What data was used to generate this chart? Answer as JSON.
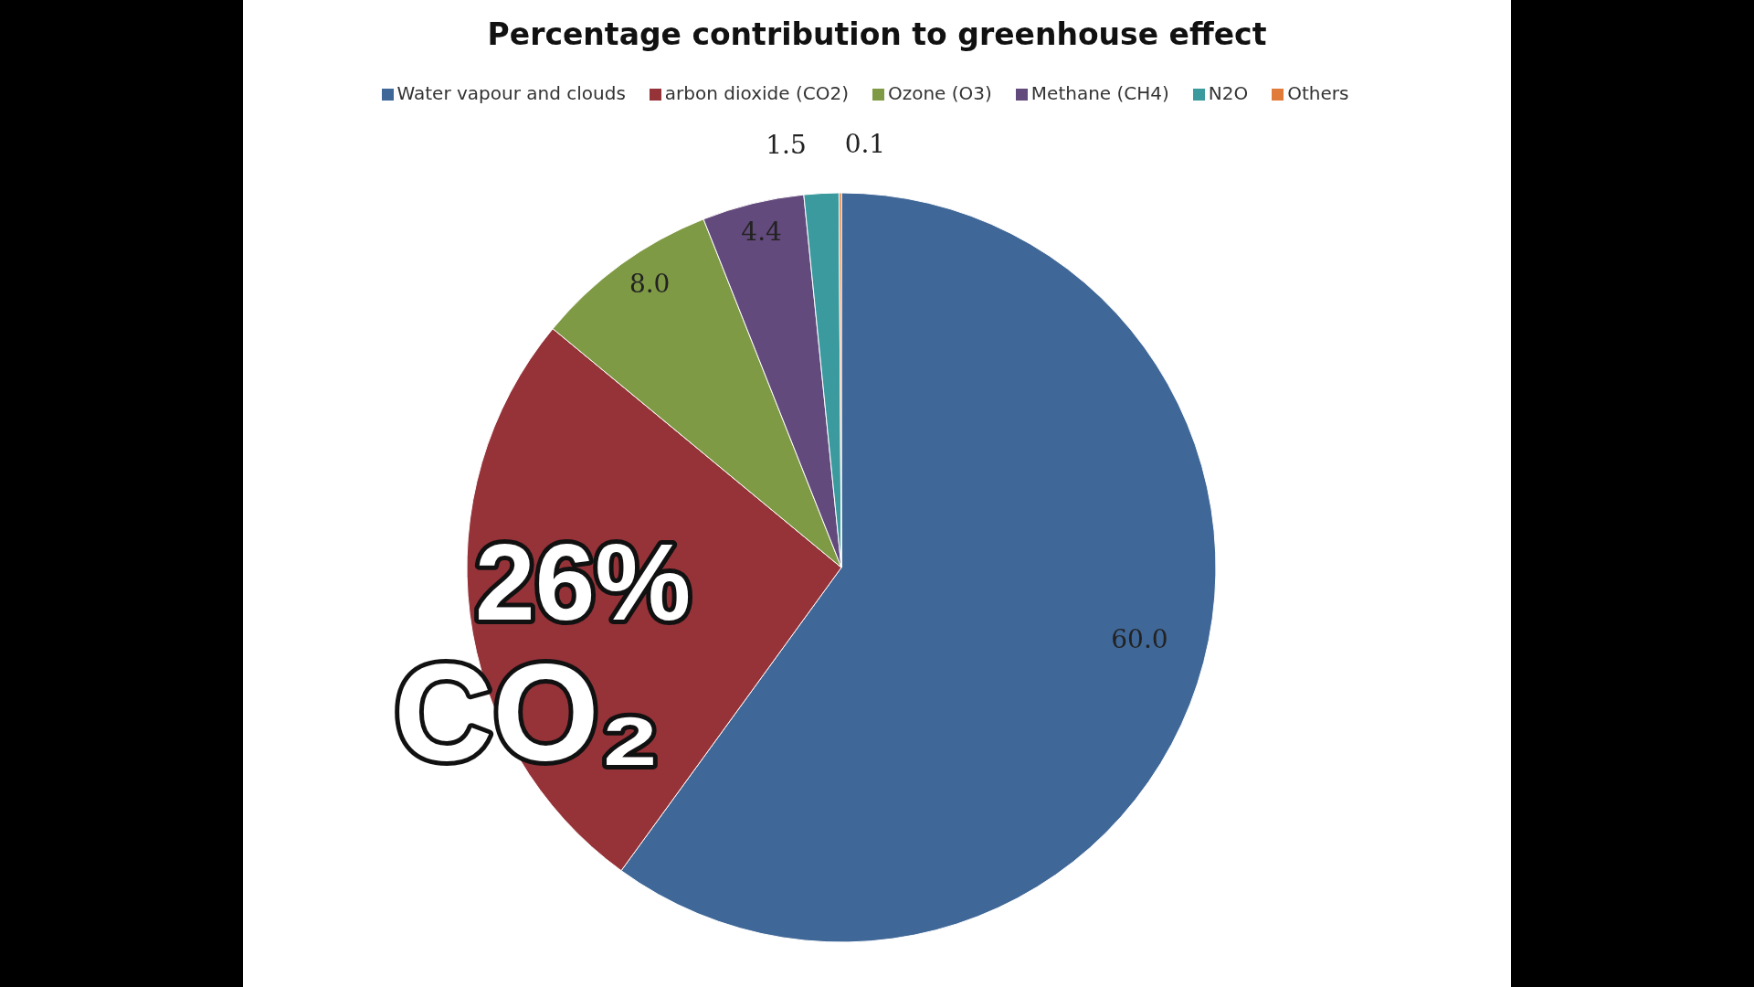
{
  "chart_data": {
    "type": "pie",
    "title": "Percentage contribution to greenhouse effect",
    "categories": [
      "Water vapour and clouds",
      "arbon dioxide (CO2)",
      "Ozone (O3)",
      "Methane (CH4)",
      "N2O",
      "Others"
    ],
    "values": [
      60.0,
      26,
      8.0,
      4.4,
      1.5,
      0.1
    ],
    "colors": [
      "#3f6797",
      "#963339",
      "#7f9a45",
      "#634a7c",
      "#3a9a9e",
      "#e07b39"
    ],
    "value_labels": [
      "60.0",
      null,
      "8.0",
      "4.4",
      "1.5",
      "0.1"
    ],
    "annotations": [
      "26%",
      "CO₂"
    ],
    "legend": "top"
  }
}
